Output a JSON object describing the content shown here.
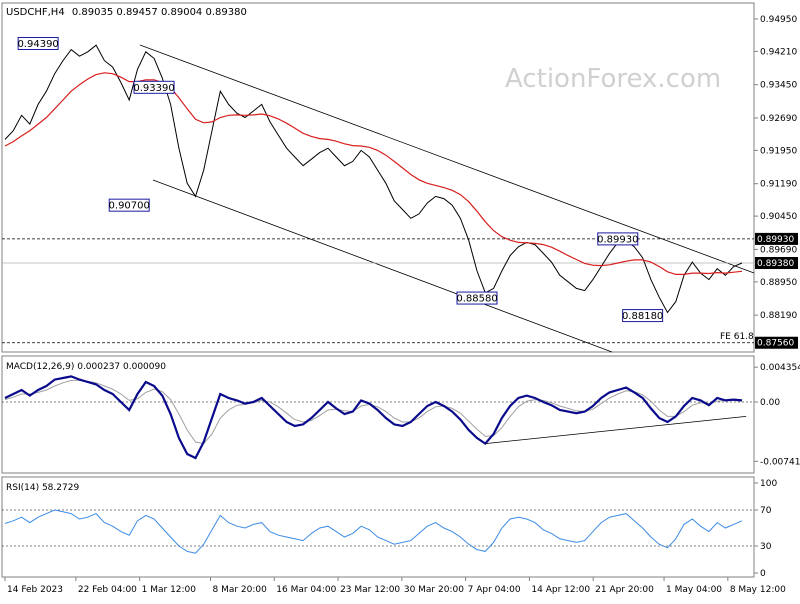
{
  "chart_data": {
    "type": "line",
    "header": {
      "symbol": "USDCHF,H4",
      "ohlc": "0.89035 0.89457 0.89004 0.89380"
    },
    "watermark": "ActionForex.com",
    "price_panel": {
      "ylim": [
        0.8744,
        0.952
      ],
      "y_ticks": [
        "0.94950",
        "0.94210",
        "0.93450",
        "0.92690",
        "0.91950",
        "0.91190",
        "0.90450",
        "0.89690",
        "0.88950",
        "0.88190"
      ],
      "y_tick_values": [
        0.9495,
        0.9421,
        0.9345,
        0.9269,
        0.9195,
        0.9119,
        0.9045,
        0.8969,
        0.8895,
        0.8819
      ],
      "price_close": [
        0.922,
        0.924,
        0.9275,
        0.9255,
        0.93,
        0.933,
        0.937,
        0.94,
        0.9425,
        0.941,
        0.942,
        0.9435,
        0.94,
        0.9385,
        0.935,
        0.931,
        0.938,
        0.942,
        0.9405,
        0.936,
        0.93,
        0.92,
        0.912,
        0.909,
        0.915,
        0.924,
        0.933,
        0.93,
        0.928,
        0.927,
        0.9285,
        0.93,
        0.926,
        0.923,
        0.92,
        0.918,
        0.916,
        0.9175,
        0.919,
        0.92,
        0.918,
        0.916,
        0.917,
        0.9195,
        0.918,
        0.915,
        0.912,
        0.908,
        0.906,
        0.904,
        0.905,
        0.9075,
        0.909,
        0.9085,
        0.907,
        0.904,
        0.899,
        0.892,
        0.887,
        0.888,
        0.892,
        0.8955,
        0.8975,
        0.8985,
        0.898,
        0.896,
        0.894,
        0.891,
        0.8895,
        0.888,
        0.8875,
        0.89,
        0.893,
        0.896,
        0.8985,
        0.899,
        0.8975,
        0.895,
        0.89,
        0.886,
        0.8825,
        0.885,
        0.891,
        0.894,
        0.8915,
        0.89,
        0.8925,
        0.891,
        0.893,
        0.8938
      ],
      "ma": [
        0.9205,
        0.9215,
        0.9228,
        0.924,
        0.9255,
        0.927,
        0.929,
        0.931,
        0.933,
        0.9345,
        0.9358,
        0.9368,
        0.9372,
        0.937,
        0.9362,
        0.9352,
        0.9352,
        0.9356,
        0.9356,
        0.935,
        0.9338,
        0.9315,
        0.929,
        0.9266,
        0.9258,
        0.926,
        0.927,
        0.9275,
        0.9276,
        0.9275,
        0.9276,
        0.9278,
        0.9274,
        0.9267,
        0.9257,
        0.9246,
        0.9234,
        0.9227,
        0.9222,
        0.922,
        0.9216,
        0.921,
        0.9206,
        0.9205,
        0.9202,
        0.9195,
        0.9184,
        0.917,
        0.9155,
        0.914,
        0.9128,
        0.912,
        0.9115,
        0.911,
        0.9104,
        0.9094,
        0.9078,
        0.9056,
        0.9032,
        0.9012,
        0.8998,
        0.899,
        0.8985,
        0.8984,
        0.8983,
        0.898,
        0.8974,
        0.8965,
        0.8955,
        0.8946,
        0.8937,
        0.8933,
        0.8932,
        0.8934,
        0.8938,
        0.8942,
        0.8945,
        0.8945,
        0.894,
        0.893,
        0.8918,
        0.8912,
        0.8912,
        0.8915,
        0.8915,
        0.8914,
        0.8916,
        0.8915,
        0.8917,
        0.8919
      ],
      "level_labels": [
        {
          "text": "0.94390",
          "x": 4,
          "y": 0.9439
        },
        {
          "text": "0.93390",
          "x": 18,
          "y": 0.9339
        },
        {
          "text": "0.90700",
          "x": 15,
          "y": 0.907
        },
        {
          "text": "0.88580",
          "x": 57,
          "y": 0.8858
        },
        {
          "text": "0.89930",
          "x": 74,
          "y": 0.8993
        },
        {
          "text": "0.88180",
          "x": 77,
          "y": 0.8818
        }
      ],
      "dashed_levels": [
        {
          "value": 0.8993,
          "label": "0.89930"
        },
        {
          "value": 0.8756,
          "label": "0.87560"
        }
      ],
      "current_price": {
        "value": 0.8938,
        "label": "0.89380"
      },
      "fe_label": "FE 61.8"
    },
    "macd_panel": {
      "title": "MACD(12,26,9) 0.000237 0.000090",
      "ylim": [
        -0.0085,
        0.005
      ],
      "y_ticks": [
        "0.004354",
        "0.00",
        "-0.007417"
      ],
      "y_tick_values": [
        0.004354,
        0.0,
        -0.007417
      ],
      "macd": [
        0.0005,
        0.001,
        0.0015,
        0.0008,
        0.0015,
        0.002,
        0.0028,
        0.003,
        0.0032,
        0.0028,
        0.0025,
        0.0022,
        0.0015,
        0.001,
        0.0,
        -0.001,
        0.001,
        0.0025,
        0.002,
        0.0008,
        -0.0015,
        -0.0045,
        -0.0065,
        -0.007,
        -0.005,
        -0.002,
        0.001,
        0.0005,
        0.0002,
        -0.0002,
        0.0,
        0.0005,
        -0.0005,
        -0.0015,
        -0.0025,
        -0.003,
        -0.0028,
        -0.002,
        -0.001,
        0.0,
        -0.0008,
        -0.0015,
        -0.0012,
        0.0002,
        -0.0002,
        -0.001,
        -0.002,
        -0.0028,
        -0.003,
        -0.0025,
        -0.0015,
        -0.0005,
        0.0,
        -0.0005,
        -0.0012,
        -0.0022,
        -0.0035,
        -0.0045,
        -0.0052,
        -0.004,
        -0.002,
        -0.0005,
        0.0005,
        0.0008,
        0.0005,
        0.0,
        -0.0004,
        -0.001,
        -0.0012,
        -0.0014,
        -0.0012,
        -0.0005,
        0.0005,
        0.0012,
        0.0015,
        0.0018,
        0.0012,
        0.0005,
        -0.0008,
        -0.002,
        -0.0025,
        -0.0018,
        -0.0005,
        0.0005,
        0.0002,
        -0.0004,
        0.0005,
        0.0002,
        0.0003,
        0.0002
      ],
      "signal": [
        0.0003,
        0.0006,
        0.001,
        0.001,
        0.0012,
        0.0015,
        0.002,
        0.0024,
        0.0027,
        0.0027,
        0.0026,
        0.0024,
        0.002,
        0.0016,
        0.001,
        0.0002,
        0.0004,
        0.0012,
        0.0016,
        0.0013,
        0.0003,
        -0.0015,
        -0.0035,
        -0.005,
        -0.0052,
        -0.004,
        -0.002,
        -0.001,
        -0.0004,
        -0.0003,
        -0.0001,
        0.0002,
        0.0,
        -0.0006,
        -0.0014,
        -0.0022,
        -0.0025,
        -0.0023,
        -0.0017,
        -0.001,
        -0.0009,
        -0.0011,
        -0.0012,
        -0.0005,
        -0.0003,
        -0.0006,
        -0.0012,
        -0.002,
        -0.0025,
        -0.0025,
        -0.002,
        -0.0012,
        -0.0006,
        -0.0005,
        -0.0008,
        -0.0014,
        -0.0024,
        -0.0034,
        -0.0043,
        -0.0042,
        -0.0032,
        -0.0018,
        -0.0006,
        0.0001,
        0.0003,
        0.0002,
        -0.0001,
        -0.0005,
        -0.0008,
        -0.0011,
        -0.0012,
        -0.0009,
        -0.0002,
        0.0005,
        0.001,
        0.0014,
        0.0013,
        0.0009,
        0.0001,
        -0.001,
        -0.0018,
        -0.0018,
        -0.0012,
        -0.0004,
        -0.0001,
        -0.0002,
        0.0001,
        0.0002,
        0.0002,
        0.0001
      ],
      "trendline": [
        {
          "x": 58,
          "y": -0.0052
        },
        {
          "x": 89.5,
          "y": -0.0018
        }
      ]
    },
    "rsi_panel": {
      "title": "RSI(14) 58.2729",
      "ylim": [
        0,
        100
      ],
      "y_ticks": [
        "100",
        "70",
        "30",
        "0"
      ],
      "y_tick_values": [
        100,
        70,
        30,
        0
      ],
      "rsi": [
        55,
        58,
        62,
        56,
        62,
        66,
        70,
        68,
        66,
        60,
        62,
        66,
        56,
        52,
        46,
        42,
        58,
        64,
        60,
        50,
        40,
        30,
        24,
        22,
        32,
        48,
        64,
        56,
        52,
        50,
        54,
        56,
        46,
        42,
        40,
        38,
        36,
        44,
        50,
        52,
        46,
        40,
        44,
        52,
        48,
        40,
        36,
        32,
        34,
        36,
        44,
        52,
        56,
        50,
        46,
        40,
        32,
        26,
        24,
        34,
        50,
        60,
        62,
        60,
        56,
        48,
        44,
        38,
        36,
        34,
        36,
        46,
        56,
        62,
        64,
        66,
        58,
        50,
        40,
        32,
        28,
        38,
        54,
        60,
        52,
        46,
        56,
        50,
        54,
        58
      ]
    },
    "x_labels": [
      {
        "text": "14 Feb 2023",
        "x": 0
      },
      {
        "text": "22 Feb 04:00",
        "x": 10
      },
      {
        "text": "1 Mar 12:00",
        "x": 19
      },
      {
        "text": "8 Mar 20:00",
        "x": 29
      },
      {
        "text": "16 Mar 04:00",
        "x": 38
      },
      {
        "text": "23 Mar 12:00",
        "x": 47
      },
      {
        "text": "30 Mar 20:00",
        "x": 56
      },
      {
        "text": "7 Apr 04:00",
        "x": 65
      },
      {
        "text": "14 Apr 12:00",
        "x": 74
      },
      {
        "text": "21 Apr 20:00",
        "x": 83
      },
      {
        "text": "1 May 04:00",
        "x": 93
      },
      {
        "text": "8 May 12:00",
        "x": 102
      }
    ],
    "colors": {
      "price": "#000000",
      "ma": "#d81e1e",
      "macd": "#0a0a8c",
      "signal": "#a0a0a0",
      "rsi": "#3c8ce6",
      "label_border": "#1a1aa0"
    }
  }
}
